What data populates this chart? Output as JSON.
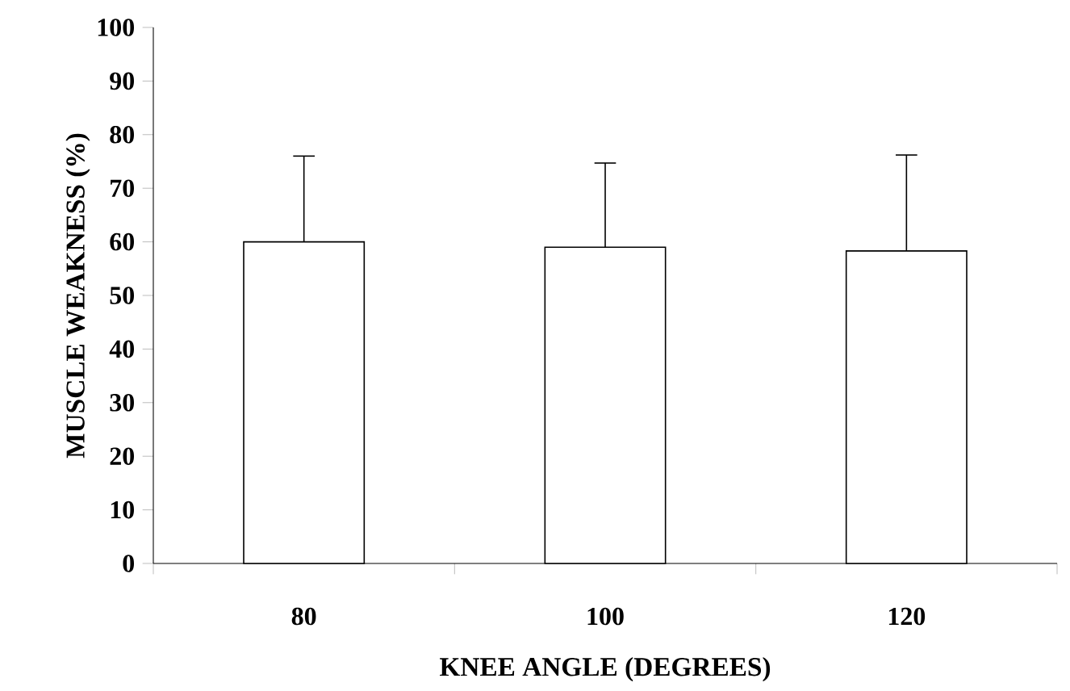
{
  "chart_data": {
    "type": "bar",
    "xlabel": "KNEE ANGLE (DEGREES)",
    "ylabel": "MUSCLE WEAKNESS (%)",
    "categories": [
      "80",
      "100",
      "120"
    ],
    "values": [
      60,
      59,
      58.3
    ],
    "errors": [
      [
        60,
        76
      ],
      [
        59,
        74.7
      ],
      [
        58.3,
        76.2
      ]
    ],
    "color": "#ffffff",
    "ylim": [
      0,
      100
    ],
    "yticks": [
      0,
      10,
      20,
      30,
      40,
      50,
      60,
      70,
      80,
      90,
      100
    ],
    "grid": false
  }
}
